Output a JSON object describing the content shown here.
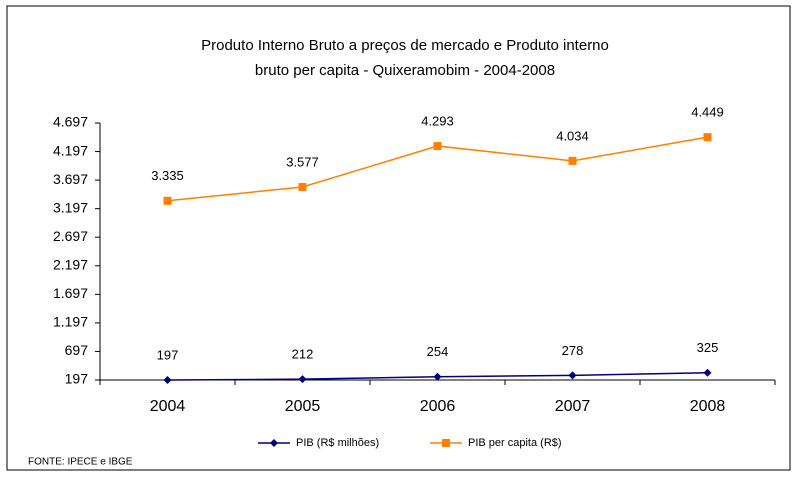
{
  "chart_data": {
    "type": "line",
    "title": [
      "Produto Interno Bruto a preços de mercado  e  Produto interno",
      "bruto per capita - Quixeramobim - 2004-2008"
    ],
    "categories": [
      "2004",
      "2005",
      "2006",
      "2007",
      "2008"
    ],
    "series": [
      {
        "name": "PIB (R$ milhões)",
        "color": "#000080",
        "marker": "diamond",
        "values": [
          197,
          212,
          254,
          278,
          325
        ]
      },
      {
        "name": "PIB per capita (R$)",
        "color": "#ff8000",
        "marker": "square",
        "values": [
          3335,
          3577,
          4293,
          4034,
          4449
        ],
        "value_labels": [
          "3.335",
          "3.577",
          "4.293",
          "4.034",
          "4.449"
        ]
      }
    ],
    "ylim": [
      197,
      4697
    ],
    "yticks": [
      197,
      697,
      {
        "value": 1197,
        "label": "1.197"
      },
      {
        "value": 1697,
        "label": "1.697"
      },
      {
        "value": 2197,
        "label": "2.197"
      },
      {
        "value": 2697,
        "label": "2.697"
      },
      {
        "value": 3197,
        "label": "3.197"
      },
      {
        "value": 3697,
        "label": "3.697"
      },
      {
        "value": 4197,
        "label": "4.197"
      },
      {
        "value": 4697,
        "label": "4.697"
      }
    ],
    "grid": false,
    "legend": "bottom",
    "source": "FONTE: IPECE e IBGE"
  }
}
